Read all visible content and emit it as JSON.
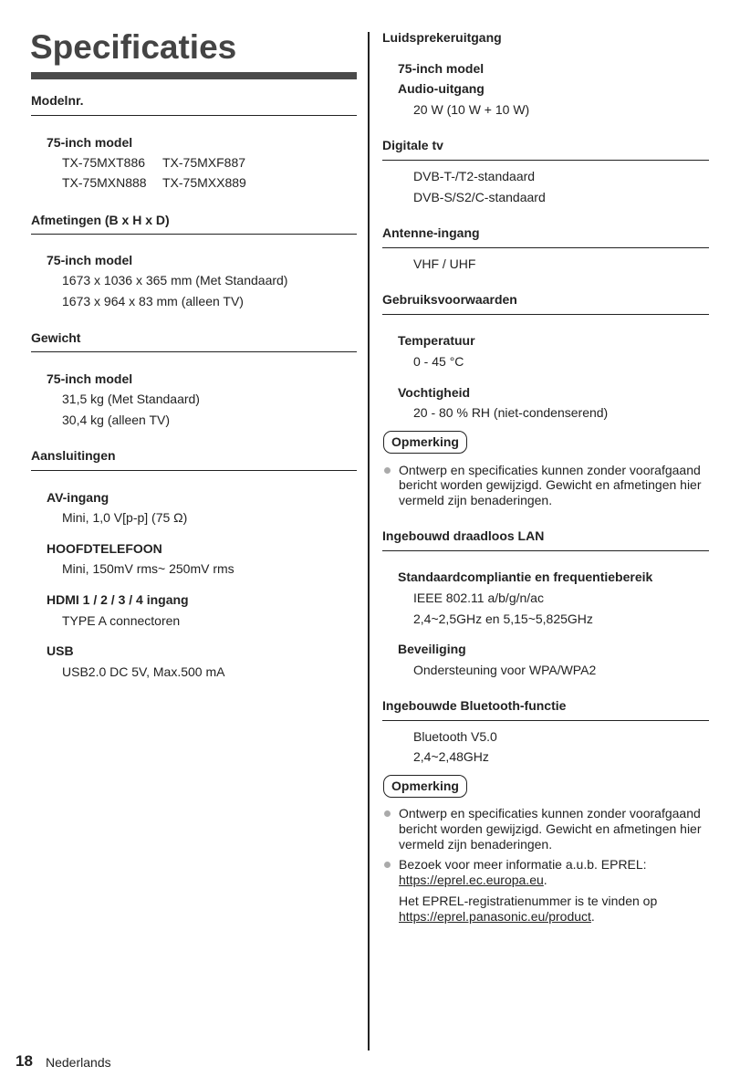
{
  "title": "Specificaties",
  "left": {
    "modelnr": {
      "heading": "Modelnr.",
      "sub": "75-inch model",
      "models": [
        "TX-75MXT886",
        "TX-75MXF887",
        "TX-75MXN888",
        "TX-75MXX889"
      ]
    },
    "afmetingen": {
      "heading": "Afmetingen (B x H x D)",
      "sub": "75-inch model",
      "values": [
        "1673 x 1036 x 365 mm (Met Standaard)",
        "1673 x 964 x 83 mm (alleen TV)"
      ]
    },
    "gewicht": {
      "heading": "Gewicht",
      "sub": "75-inch model",
      "values": [
        "31,5 kg (Met Standaard)",
        "30,4 kg (alleen TV)"
      ]
    },
    "aansluitingen": {
      "heading": "Aansluitingen",
      "items": [
        {
          "label": "AV-ingang",
          "value": "Mini, 1,0 V[p-p] (75 Ω)"
        },
        {
          "label": "HOOFDTELEFOON",
          "value": "Mini, 150mV rms~ 250mV rms"
        },
        {
          "label": "HDMI 1 / 2 / 3 / 4 ingang",
          "value": "TYPE A connectoren"
        },
        {
          "label": "USB",
          "value": "USB2.0 DC 5V, Max.500 mA"
        }
      ]
    }
  },
  "right": {
    "luidspreker": {
      "heading": "Luidsprekeruitgang",
      "sub": "75-inch model",
      "sub2": "Audio-uitgang",
      "value": "20 W (10 W + 10 W)"
    },
    "digitale": {
      "heading": "Digitale tv",
      "values": [
        "DVB-T-/T2-standaard",
        "DVB-S/S2/C-standaard"
      ]
    },
    "antenne": {
      "heading": "Antenne-ingang",
      "value": "VHF / UHF"
    },
    "gebruik": {
      "heading": "Gebruiksvoorwaarden",
      "temp_label": "Temperatuur",
      "temp": "0 - 45 °C",
      "voch_label": "Vochtigheid",
      "voch": "20 - 80 % RH (niet-condenserend)"
    },
    "note1": {
      "label": "Opmerking",
      "lines": [
        "Ontwerp en specificaties kunnen zonder voorafgaand",
        "bericht worden gewijzigd. Gewicht en afmetingen hier",
        "vermeld zijn benaderingen."
      ]
    },
    "lan": {
      "heading": "Ingebouwd draadloos LAN",
      "std_label": "Standaardcompliantie en frequentiebereik",
      "std": [
        "IEEE 802.11 a/b/g/n/ac",
        "2,4~2,5GHz en 5,15~5,825GHz"
      ],
      "sec_label": "Beveiliging",
      "sec": "Ondersteuning voor WPA/WPA2"
    },
    "bt": {
      "heading": "Ingebouwde Bluetooth-functie",
      "values": [
        "Bluetooth V5.0",
        "2,4~2,48GHz"
      ]
    },
    "note2": {
      "label": "Opmerking",
      "b1": [
        "Ontwerp en specificaties kunnen zonder voorafgaand",
        "bericht worden gewijzigd. Gewicht en afmetingen hier",
        "vermeld zijn benaderingen."
      ],
      "b2_text": "Bezoek voor meer informatie a.u.b. EPREL:",
      "b2_link": "https://eprel.ec.europa.eu",
      "b3_text": "Het EPREL-registratienummer is te vinden op",
      "b3_link": "https://eprel.panasonic.eu/product",
      "dot": "."
    }
  },
  "footer": {
    "page": "18",
    "language": "Nederlands"
  }
}
